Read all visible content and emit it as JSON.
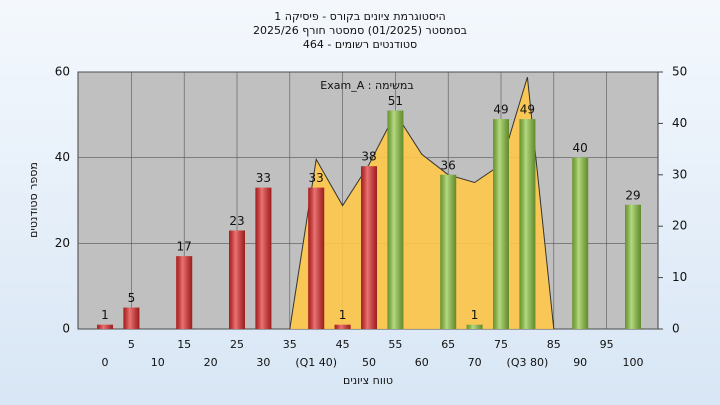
{
  "chart_data": {
    "type": "bar",
    "title_lines": [
      "היסטוגרמת ציונים בקורס - פיסיקה 1",
      "בסמסטר  (01/2025)  סמסטר חורף 2025/26",
      "סטודנטים רשומים - 464"
    ],
    "annotation": "במשימה : Exam_A",
    "x_label": "טווח ציונים",
    "y_label": "מספר סטודנטים",
    "categories": [
      "0",
      "5",
      "10",
      "15",
      "20",
      "25",
      "30",
      "35",
      "(Q1 40)",
      "45",
      "50",
      "55",
      "60",
      "65",
      "70",
      "75",
      "(Q3 80)",
      "85",
      "90",
      "95",
      "100"
    ],
    "series": [
      {
        "values": [
          1,
          5,
          null,
          17,
          null,
          23,
          33,
          null,
          33,
          1,
          38,
          51,
          null,
          36,
          1,
          49,
          49,
          null,
          40,
          null,
          29
        ],
        "colors": [
          "#e02828",
          "#e02828",
          null,
          "#e02828",
          null,
          "#e02828",
          "#e02828",
          null,
          "#e02828",
          "#e02828",
          "#e02828",
          "#8cc63e",
          null,
          "#8cc63e",
          "#8cc63e",
          "#8cc63e",
          "#8cc63e",
          null,
          "#8cc63e",
          null,
          "#8cc63e"
        ]
      },
      {
        "type": "area",
        "axis": "y2",
        "color": "#ffc84a",
        "line_color": "#333333",
        "values": [
          null,
          null,
          null,
          null,
          null,
          null,
          null,
          0,
          33,
          24,
          32,
          42,
          34,
          30,
          28.5,
          32,
          49,
          0,
          null,
          null,
          null
        ]
      }
    ],
    "ylim": [
      0,
      60
    ],
    "yticks": [
      0,
      20,
      40,
      60
    ],
    "y2lim": [
      0,
      50
    ],
    "y2ticks": [
      0,
      10,
      20,
      30,
      40,
      50
    ],
    "grid": true
  }
}
